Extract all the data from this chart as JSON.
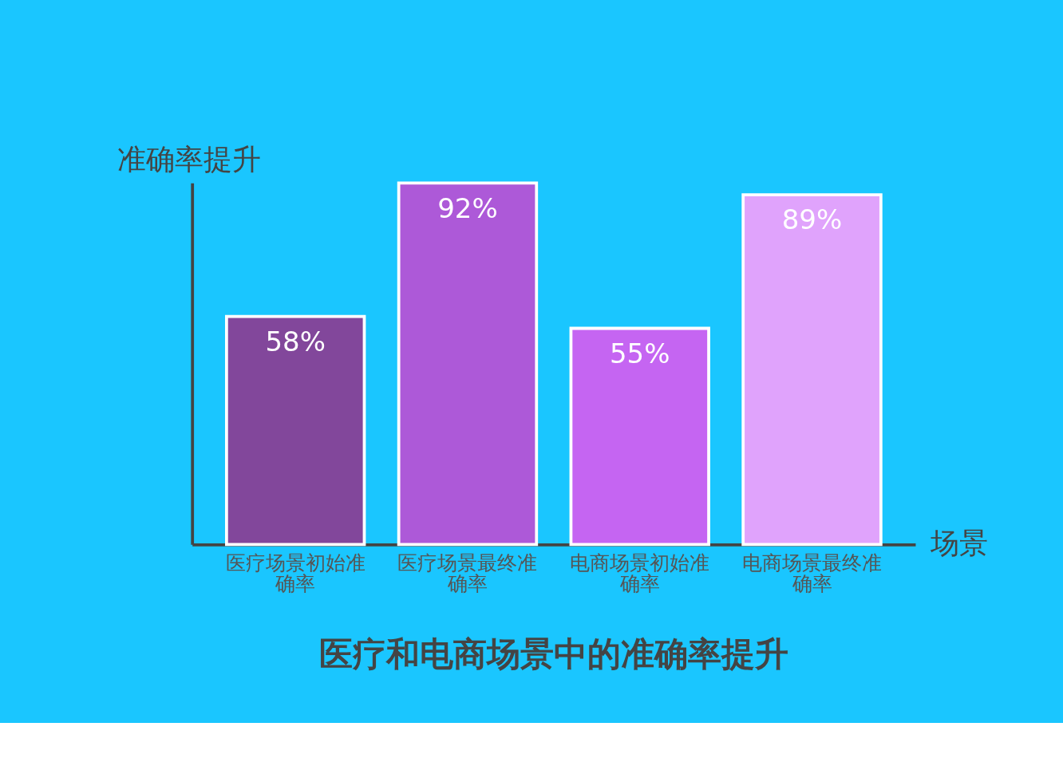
{
  "chart_data": {
    "type": "bar",
    "title": "医疗和电商场景中的准确率提升",
    "xlabel": "场景",
    "ylabel": "准确率提升",
    "categories": [
      "医疗场景初始准确率",
      "医疗场景最终准确率",
      "电商场景初始准确率",
      "电商场景最终准确率"
    ],
    "values": [
      58,
      92,
      55,
      89
    ],
    "colors": [
      "#82479b",
      "#ad59d8",
      "#c565f2",
      "#e0a3fc"
    ],
    "value_labels": [
      "58%",
      "92%",
      "55%",
      "89%"
    ],
    "tick_labels": "x",
    "grid": false
  }
}
